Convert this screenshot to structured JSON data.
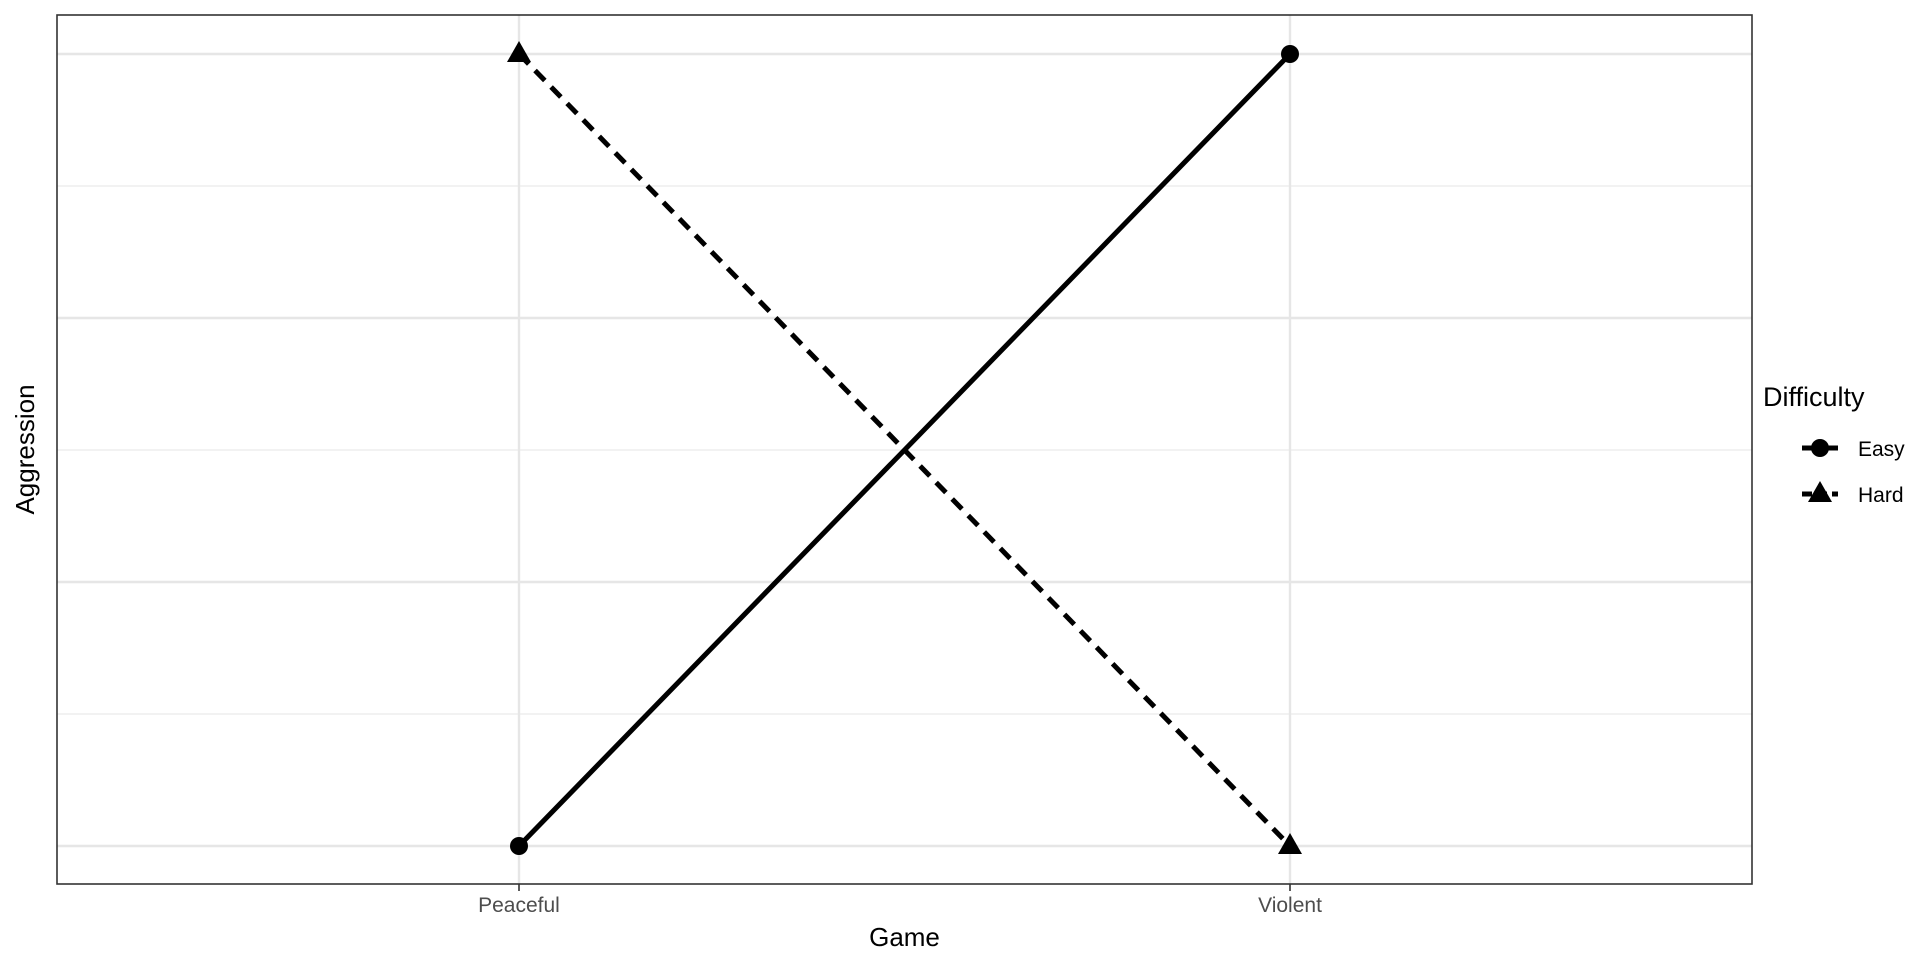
{
  "chart_data": {
    "type": "line",
    "title": "",
    "xlabel": "Game",
    "ylabel": "Aggression",
    "categories": [
      "Peaceful",
      "Violent"
    ],
    "ylim": [
      0,
      1
    ],
    "y_tick_labels_shown": false,
    "grid": true,
    "legend": {
      "title": "Difficulty",
      "placement": "right"
    },
    "series": [
      {
        "name": "Easy",
        "values": [
          0,
          1
        ],
        "line_style": "solid",
        "marker": "circle",
        "color": "#000000"
      },
      {
        "name": "Hard",
        "values": [
          1,
          0
        ],
        "line_style": "dashed",
        "marker": "triangle",
        "color": "#000000"
      }
    ]
  }
}
